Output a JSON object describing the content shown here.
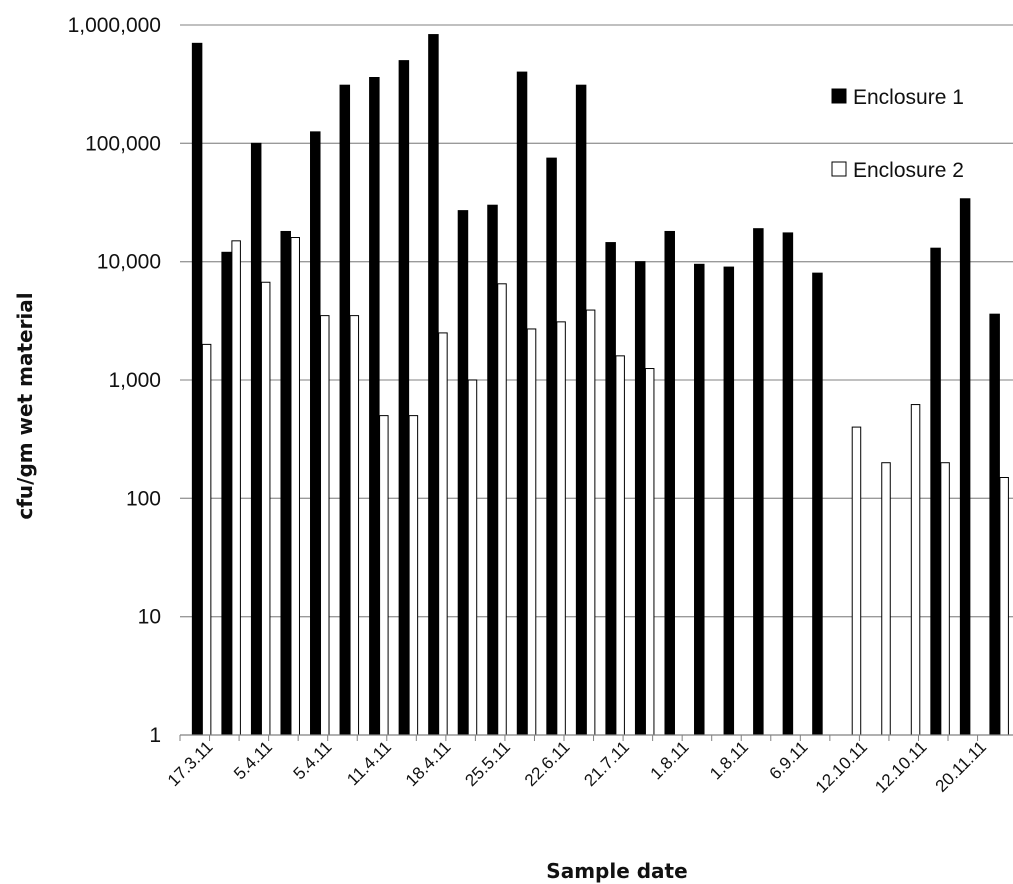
{
  "chart_data": {
    "type": "bar",
    "xlabel": "Sample date",
    "ylabel": "cfu/gm wet material",
    "yscale": "log",
    "ylim": [
      1,
      1000000
    ],
    "yticks": [
      1,
      10,
      100,
      1000,
      10000,
      100000,
      1000000
    ],
    "ytick_labels": [
      "1",
      "10",
      "100",
      "1,000",
      "10,000",
      "100,000",
      "1,000,000"
    ],
    "xtick_labels": [
      "17.3.11",
      "5.4.11",
      "5.4.11",
      "11.4.11",
      "18.4.11",
      "25.5.11",
      "22.6.11",
      "21.7.11",
      "1.8.11",
      "1.8.11",
      "6.9.11",
      "12.10.11",
      "12.10.11",
      "20.11.11"
    ],
    "grid": "horizontal",
    "legend_position": "top-right",
    "colors": {
      "enclosure1": "#000000",
      "enclosure2": "#ffffff",
      "grid": "#9a9a9a",
      "axis": "#808080"
    },
    "series": [
      {
        "name": "Enclosure 1",
        "values": [
          700000,
          12000,
          100000,
          18000,
          125000,
          310000,
          360000,
          500000,
          830000,
          27000,
          30000,
          400000,
          75000,
          310000,
          14500,
          10000,
          18000,
          9500,
          9000,
          19000,
          17500,
          8000,
          null,
          null,
          null,
          13000,
          34000,
          3600
        ]
      },
      {
        "name": "Enclosure 2",
        "values": [
          2000,
          15000,
          6700,
          16000,
          3500,
          3500,
          500,
          500,
          2500,
          1000,
          6500,
          2700,
          3100,
          3900,
          1600,
          1250,
          null,
          null,
          null,
          null,
          null,
          null,
          400,
          200,
          620,
          200,
          null,
          150
        ]
      }
    ]
  }
}
